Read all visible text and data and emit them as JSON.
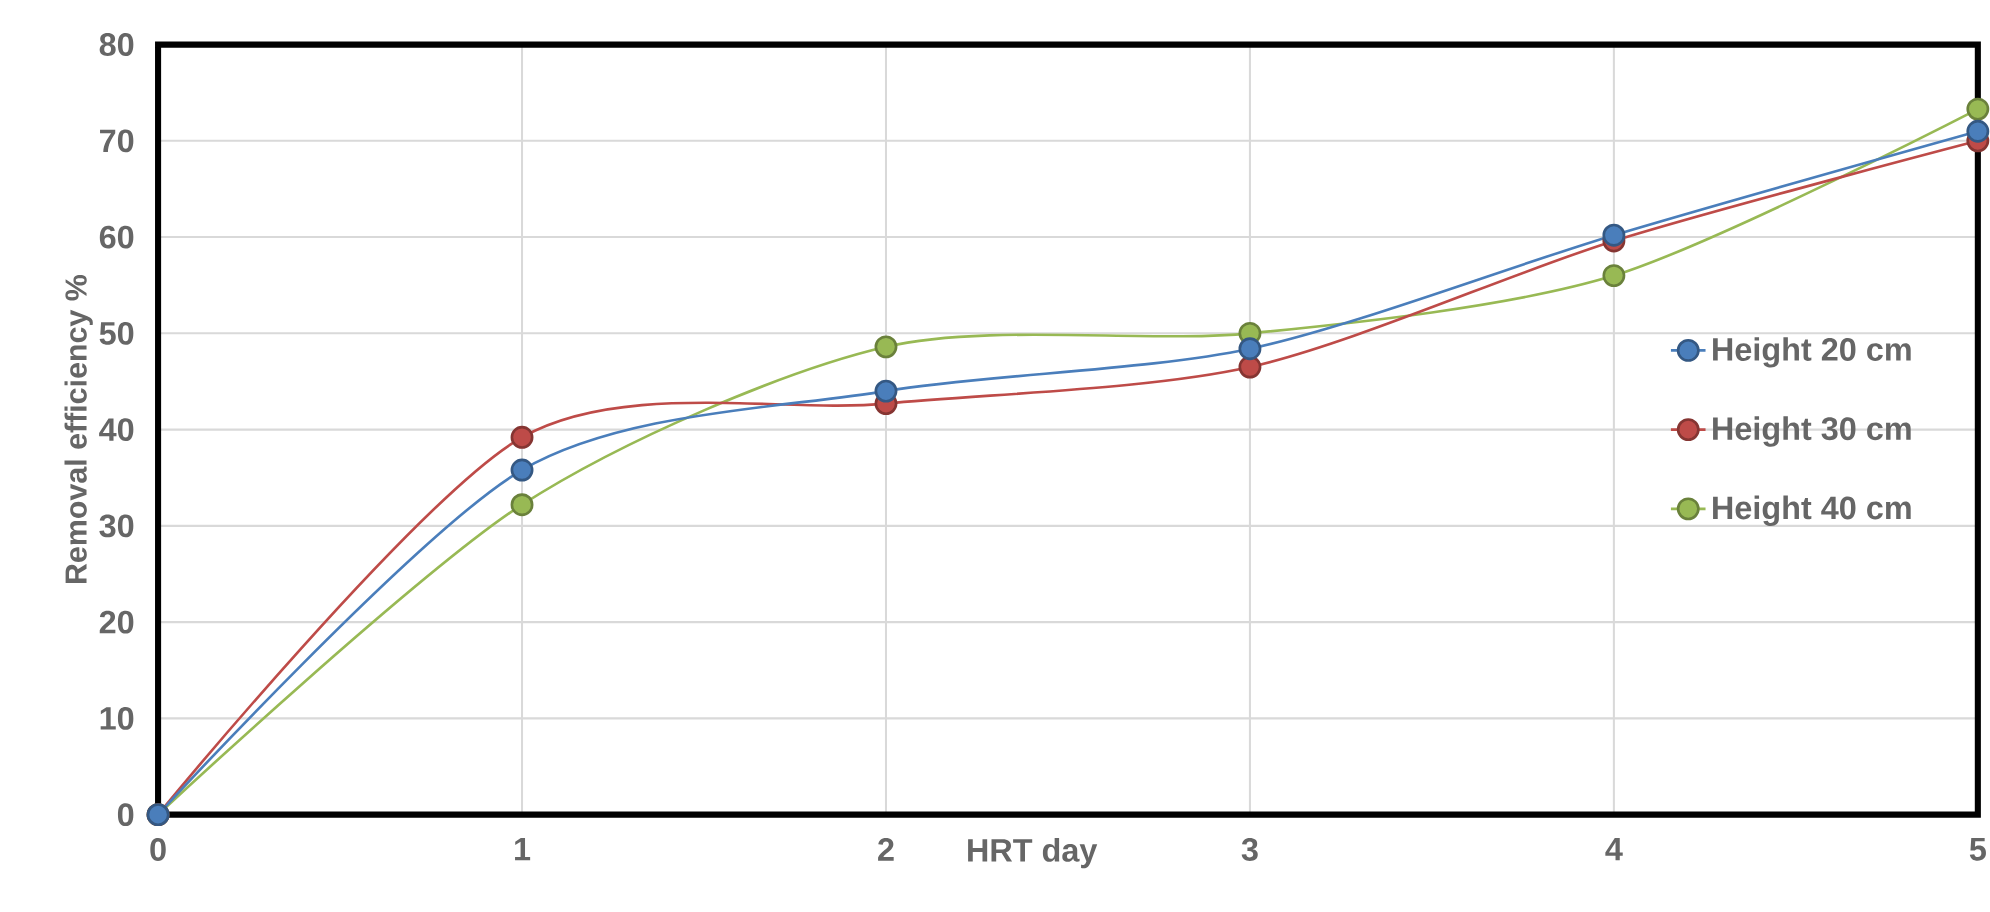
{
  "chart_data": {
    "type": "line",
    "xlabel": "HRT day",
    "ylabel": "Removal efficiency  %",
    "x": [
      0,
      1,
      2,
      3,
      4,
      5
    ],
    "series": [
      {
        "name": "Height 20 cm",
        "color": "#4a7ebb",
        "values": [
          0,
          35.8,
          44,
          48.4,
          60.2,
          71
        ]
      },
      {
        "name": "Height 30 cm",
        "color": "#be4b48",
        "values": [
          0,
          39.2,
          42.7,
          46.5,
          59.6,
          70
        ]
      },
      {
        "name": "Height 40 cm",
        "color": "#98b954",
        "values": [
          0,
          32.2,
          48.6,
          50,
          56,
          73.3
        ]
      }
    ],
    "xlim": [
      0,
      5
    ],
    "ylim": [
      0,
      80
    ],
    "xticks": [
      0,
      1,
      2,
      3,
      4,
      5
    ],
    "yticks": [
      0,
      10,
      20,
      30,
      40,
      50,
      60,
      70,
      80
    ],
    "grid": true,
    "legend": "right",
    "marker": "circle",
    "line_style": "solid"
  }
}
